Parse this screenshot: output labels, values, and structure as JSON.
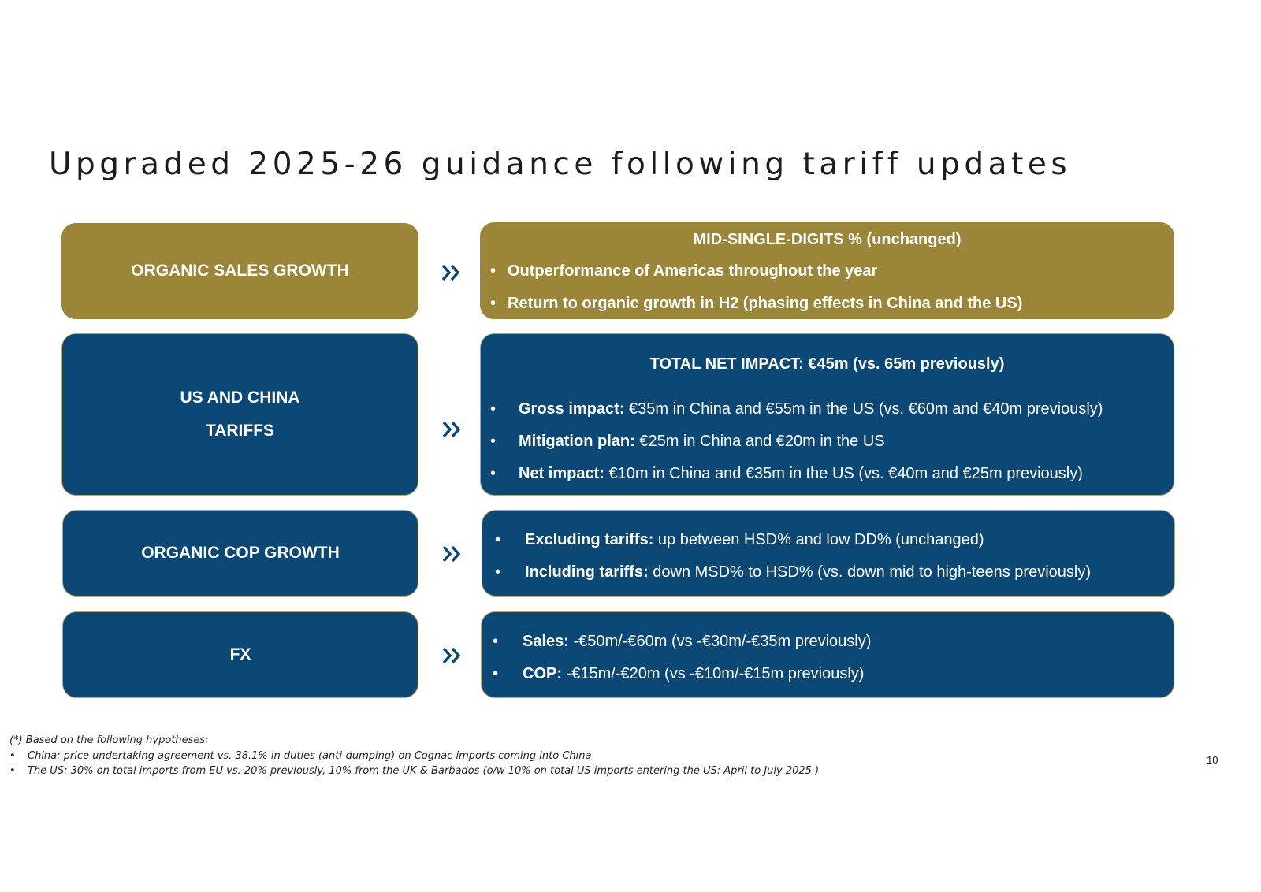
{
  "title": "Upgraded 2025-26 guidance following tariff updates",
  "colors": {
    "gold": "#9b8538",
    "navy": "#0c4876",
    "arrow": "#0c4876"
  },
  "rows": [
    {
      "label_lines": [
        "ORGANIC SALES GROWTH"
      ],
      "head": "MID-SINGLE-DIGITS % (unchanged)",
      "bullets": [
        {
          "key": "",
          "text": "Outperformance of Americas throughout the year"
        },
        {
          "key": "",
          "text": "Return to organic growth in H2 (phasing effects in China and the US)"
        }
      ]
    },
    {
      "label_lines": [
        "US AND CHINA",
        "TARIFFS"
      ],
      "head": "TOTAL NET IMPACT: €45m (vs. 65m previously)",
      "bullets": [
        {
          "key": "Gross impact:",
          "text": " €35m in China and €55m in the US (vs. €60m and €40m previously)"
        },
        {
          "key": "Mitigation plan:",
          "text": " €25m in China and €20m in the US"
        },
        {
          "key": "Net impact:",
          "text": " €10m in China and €35m in the US (vs. €40m and €25m previously)"
        }
      ]
    },
    {
      "label_lines": [
        "ORGANIC COP GROWTH"
      ],
      "head": "",
      "bullets": [
        {
          "key": "Excluding tariffs:",
          "text": " up between HSD% and low DD% (unchanged)"
        },
        {
          "key": "Including tariffs:",
          "text": " down MSD% to HSD% (vs. down mid to high-teens previously)"
        }
      ]
    },
    {
      "label_lines": [
        "FX"
      ],
      "head": "",
      "bullets": [
        {
          "key": "Sales:",
          "text": " -€50m/-€60m (vs -€30m/-€35m previously)"
        },
        {
          "key": "COP:",
          "text": " -€15m/-€20m (vs -€10m/-€15m previously)"
        }
      ]
    }
  ],
  "footnote": {
    "intro": "(*) Based on the following hypotheses:",
    "items": [
      {
        "key": "China:",
        "text": " price undertaking agreement vs. 38.1% in duties (anti-dumping) on Cognac imports coming into China"
      },
      {
        "key": "The US:",
        "text": " 30% on total imports from EU vs. 20% previously, 10% from the UK & Barbados (o/w 10% on total US imports entering the US: April to July 2025 )"
      }
    ]
  },
  "page_number": "10",
  "bullet_glyph": "•"
}
